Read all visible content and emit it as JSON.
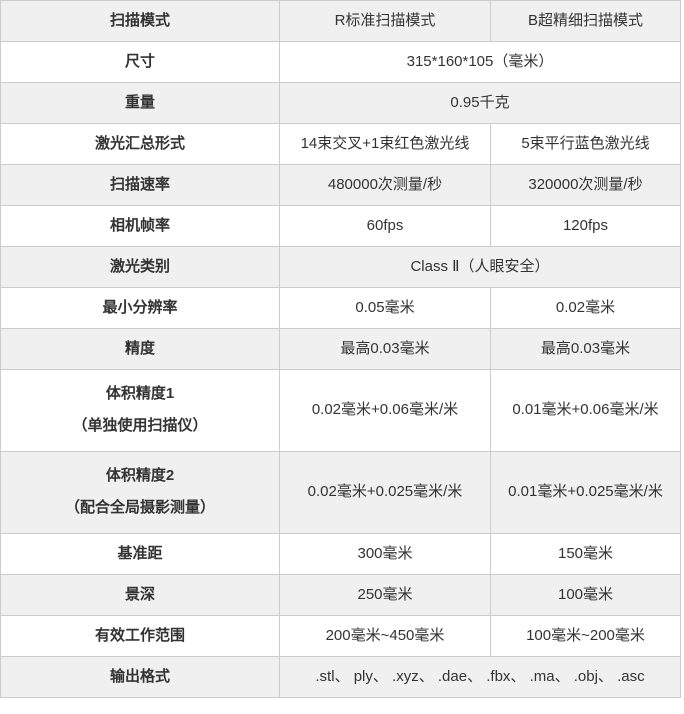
{
  "colors": {
    "row_alt_bg": "#f0f0f0",
    "row_bg": "#ffffff",
    "border": "#cccccc",
    "text": "#333333"
  },
  "table": {
    "rows": [
      {
        "label": "扫描模式",
        "values": [
          "R标准扫描模式",
          "B超精细扫描模式"
        ]
      },
      {
        "label": "尺寸",
        "value": "315*160*105（毫米）"
      },
      {
        "label": "重量",
        "value": "0.95千克"
      },
      {
        "label": "激光汇总形式",
        "values": [
          "14束交叉+1束红色激光线",
          "5束平行蓝色激光线"
        ]
      },
      {
        "label": "扫描速率",
        "values": [
          "480000次测量/秒",
          "320000次测量/秒"
        ]
      },
      {
        "label": "相机帧率",
        "values": [
          "60fps",
          "120fps"
        ]
      },
      {
        "label": "激光类别",
        "value": "Class Ⅱ（人眼安全）"
      },
      {
        "label": "最小分辨率",
        "values": [
          "0.05毫米",
          "0.02毫米"
        ]
      },
      {
        "label": "精度",
        "values": [
          "最高0.03毫米",
          "最高0.03毫米"
        ]
      },
      {
        "label": "体积精度1",
        "sublabel": "（单独使用扫描仪）",
        "values": [
          "0.02毫米+0.06毫米/米",
          "0.01毫米+0.06毫米/米"
        ]
      },
      {
        "label": "体积精度2",
        "sublabel": "（配合全局摄影测量）",
        "values": [
          "0.02毫米+0.025毫米/米",
          "0.01毫米+0.025毫米/米"
        ]
      },
      {
        "label": "基准距",
        "values": [
          "300毫米",
          "150毫米"
        ]
      },
      {
        "label": "景深",
        "values": [
          "250毫米",
          "100毫米"
        ]
      },
      {
        "label": "有效工作范围",
        "values": [
          "200毫米~450毫米",
          "100毫米~200毫米"
        ]
      },
      {
        "label": "输出格式",
        "value": ".stl、 ply、 .xyz、 .dae、 .fbx、 .ma、 .obj、 .asc"
      }
    ]
  }
}
